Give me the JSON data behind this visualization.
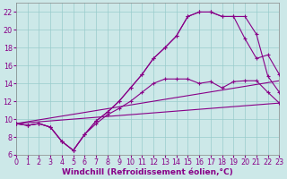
{
  "bg_color": "#cce8e8",
  "line_color": "#880088",
  "grid_color": "#99cccc",
  "xlabel": "Windchill (Refroidissement éolien,°C)",
  "xlabel_fontsize": 6.5,
  "tick_fontsize": 5.8,
  "ylim": [
    6,
    23
  ],
  "xlim": [
    0,
    23
  ],
  "yticks": [
    6,
    8,
    10,
    12,
    14,
    16,
    18,
    20,
    22
  ],
  "xticks": [
    0,
    1,
    2,
    3,
    4,
    5,
    6,
    7,
    8,
    9,
    10,
    11,
    12,
    13,
    14,
    15,
    16,
    17,
    18,
    19,
    20,
    21,
    22,
    23
  ],
  "curve_top_x": [
    0,
    1,
    2,
    3,
    4,
    5,
    6,
    7,
    8,
    9,
    10,
    11,
    12,
    13,
    14,
    15,
    16,
    17,
    18,
    19,
    20,
    21,
    22,
    23
  ],
  "curve_top_y": [
    9.5,
    9.3,
    9.5,
    9.1,
    7.5,
    6.5,
    8.3,
    9.8,
    10.8,
    12.0,
    13.5,
    15.0,
    16.8,
    18.0,
    19.3,
    21.5,
    22.0,
    22.0,
    21.5,
    21.5,
    21.5,
    19.5,
    14.8,
    13.0
  ],
  "curve_mid_x": [
    0,
    1,
    2,
    3,
    4,
    5,
    6,
    7,
    8,
    9,
    10,
    11,
    12,
    13,
    14,
    15,
    16,
    17,
    18,
    19,
    20,
    21,
    22,
    23
  ],
  "curve_mid_y": [
    9.5,
    9.3,
    9.5,
    9.1,
    7.5,
    6.5,
    8.3,
    9.8,
    10.8,
    12.0,
    13.5,
    15.0,
    16.8,
    18.0,
    19.3,
    21.5,
    22.0,
    22.0,
    21.5,
    21.5,
    19.0,
    16.8,
    17.2,
    15.0
  ],
  "curve_low_x": [
    0,
    1,
    2,
    3,
    4,
    5,
    6,
    7,
    8,
    9,
    10,
    11,
    12,
    13,
    14,
    15,
    16,
    17,
    18,
    19,
    20,
    21,
    22,
    23
  ],
  "curve_low_y": [
    9.5,
    9.3,
    9.5,
    9.1,
    7.5,
    6.5,
    8.3,
    9.5,
    10.5,
    11.2,
    12.0,
    13.0,
    14.0,
    14.5,
    14.5,
    14.5,
    14.0,
    14.2,
    13.5,
    14.2,
    14.3,
    14.3,
    13.0,
    11.8
  ],
  "line1_x": [
    0,
    23
  ],
  "line1_y": [
    9.5,
    14.3
  ],
  "line2_x": [
    0,
    23
  ],
  "line2_y": [
    9.5,
    11.8
  ]
}
